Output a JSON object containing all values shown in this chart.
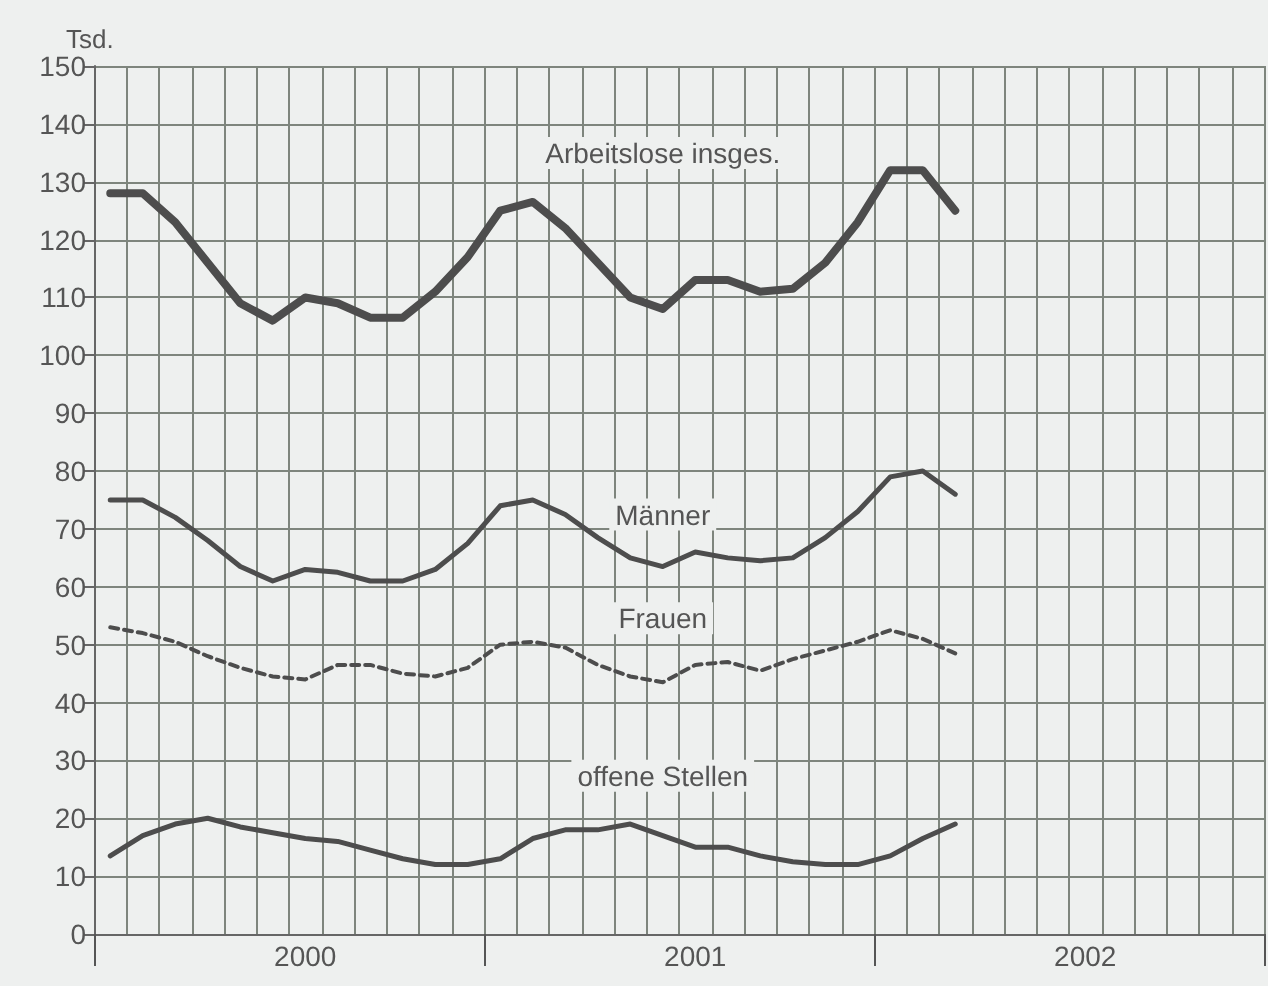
{
  "chart_data": {
    "type": "line",
    "ylabel": "Tsd.",
    "categories": [
      null,
      null,
      null,
      null,
      null,
      null,
      "2000",
      null,
      null,
      null,
      null,
      null,
      null,
      null,
      null,
      null,
      null,
      null,
      "2001",
      null,
      null,
      null,
      null,
      null,
      null,
      null,
      null,
      null,
      null,
      null,
      "2002",
      null,
      null,
      null,
      null,
      null
    ],
    "ylim": [
      0,
      150
    ],
    "yticks": [
      0,
      10,
      20,
      30,
      40,
      50,
      60,
      70,
      80,
      90,
      100,
      110,
      120,
      130,
      140,
      150
    ],
    "grid": true,
    "marker": "none",
    "legend": false,
    "series": [
      {
        "name": "Arbeitslose insges.",
        "color": "#4d4d4d",
        "line_style": "solid",
        "values": [
          128,
          128,
          123,
          116,
          109,
          106,
          110,
          109,
          106.5,
          106.5,
          111,
          117,
          125,
          126.5,
          122,
          116,
          110,
          108,
          113,
          113,
          111,
          111.5,
          116,
          123,
          132,
          132,
          125,
          null,
          null,
          null,
          null,
          null,
          null,
          null,
          null,
          null
        ]
      },
      {
        "name": "Männer",
        "color": "#4d4d4d",
        "line_style": "solid",
        "values": [
          75,
          75,
          72,
          68,
          63.5,
          61,
          63,
          62.5,
          61,
          61,
          63,
          67.5,
          74,
          75,
          72.5,
          68.5,
          65,
          63.5,
          66,
          65,
          64.5,
          65,
          68.5,
          73,
          79,
          80,
          76,
          null,
          null,
          null,
          null,
          null,
          null,
          null,
          null,
          null
        ]
      },
      {
        "name": "Frauen",
        "color": "#4d4d4d",
        "line_style": "dashed",
        "values": [
          53,
          52,
          50.5,
          48,
          46,
          44.5,
          44,
          46.5,
          46.5,
          45,
          44.5,
          46,
          50,
          50.5,
          49.5,
          46.5,
          44.5,
          43.5,
          46.5,
          47,
          45.5,
          47.5,
          49,
          50.5,
          52.5,
          51,
          48.5,
          null,
          null,
          null,
          null,
          null,
          null,
          null,
          null,
          null
        ]
      },
      {
        "name": "offene Stellen",
        "color": "#4d4d4d",
        "line_style": "solid",
        "values": [
          13.5,
          17,
          19,
          20,
          18.5,
          17.5,
          16.5,
          16,
          14.5,
          13,
          12,
          12,
          13,
          16.5,
          18,
          18,
          19,
          17,
          15,
          15,
          13.5,
          12.5,
          12,
          12,
          13.5,
          16.5,
          19,
          null,
          null,
          null,
          null,
          null,
          null,
          null,
          null,
          null
        ]
      }
    ]
  }
}
